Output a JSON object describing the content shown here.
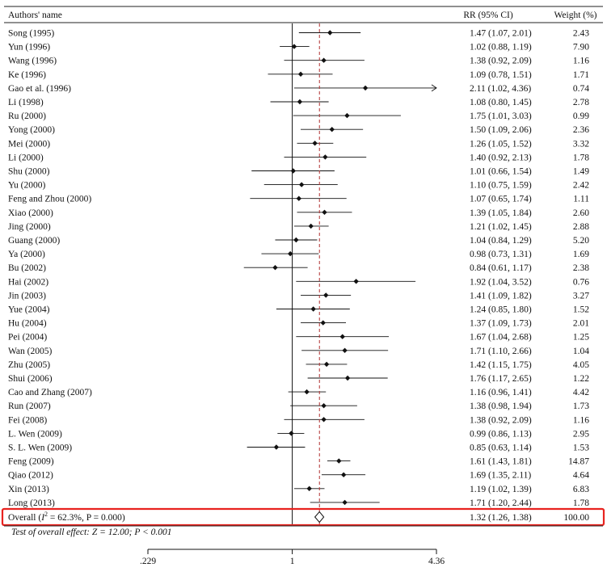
{
  "chart_data": {
    "type": "forest",
    "headers": {
      "name": "Authors' name",
      "rr": "RR (95% CI)",
      "weight": "Weight (%)"
    },
    "studies": [
      {
        "name": "Song (1995)",
        "rr": 1.47,
        "lo": 1.07,
        "hi": 2.01,
        "ci_text": "1.47 (1.07, 2.01)",
        "weight": "2.43"
      },
      {
        "name": "Yun (1996)",
        "rr": 1.02,
        "lo": 0.88,
        "hi": 1.19,
        "ci_text": "1.02 (0.88, 1.19)",
        "weight": "7.90"
      },
      {
        "name": "Wang (1996)",
        "rr": 1.38,
        "lo": 0.92,
        "hi": 2.09,
        "ci_text": "1.38 (0.92, 2.09)",
        "weight": "1.16"
      },
      {
        "name": "Ke (1996)",
        "rr": 1.09,
        "lo": 0.78,
        "hi": 1.51,
        "ci_text": "1.09 (0.78, 1.51)",
        "weight": "1.71"
      },
      {
        "name": "Gao et al. (1996)",
        "rr": 2.11,
        "lo": 1.02,
        "hi": 4.36,
        "ci_text": "2.11 (1.02, 4.36)",
        "weight": "0.74",
        "arrow": true
      },
      {
        "name": "Li (1998)",
        "rr": 1.08,
        "lo": 0.8,
        "hi": 1.45,
        "ci_text": "1.08 (0.80, 1.45)",
        "weight": "2.78"
      },
      {
        "name": "Ru (2000)",
        "rr": 1.75,
        "lo": 1.01,
        "hi": 3.03,
        "ci_text": "1.75 (1.01, 3.03)",
        "weight": "0.99"
      },
      {
        "name": "Yong (2000)",
        "rr": 1.5,
        "lo": 1.09,
        "hi": 2.06,
        "ci_text": "1.50 (1.09, 2.06)",
        "weight": "2.36"
      },
      {
        "name": "Mei (2000)",
        "rr": 1.26,
        "lo": 1.05,
        "hi": 1.52,
        "ci_text": "1.26 (1.05, 1.52)",
        "weight": "3.32"
      },
      {
        "name": "Li (2000)",
        "rr": 1.4,
        "lo": 0.92,
        "hi": 2.13,
        "ci_text": "1.40 (0.92, 2.13)",
        "weight": "1.78"
      },
      {
        "name": "Shu (2000)",
        "rr": 1.01,
        "lo": 0.66,
        "hi": 1.54,
        "ci_text": "1.01 (0.66, 1.54)",
        "weight": "1.49"
      },
      {
        "name": "Yu (2000)",
        "rr": 1.1,
        "lo": 0.75,
        "hi": 1.59,
        "ci_text": "1.10 (0.75, 1.59)",
        "weight": "2.42"
      },
      {
        "name": "Feng and Zhou (2000)",
        "rr": 1.07,
        "lo": 0.65,
        "hi": 1.74,
        "ci_text": "1.07 (0.65, 1.74)",
        "weight": "1.11"
      },
      {
        "name": "Xiao (2000)",
        "rr": 1.39,
        "lo": 1.05,
        "hi": 1.84,
        "ci_text": "1.39 (1.05, 1.84)",
        "weight": "2.60"
      },
      {
        "name": "Jing (2000)",
        "rr": 1.21,
        "lo": 1.02,
        "hi": 1.45,
        "ci_text": "1.21 (1.02, 1.45)",
        "weight": "2.88"
      },
      {
        "name": "Guang (2000)",
        "rr": 1.04,
        "lo": 0.84,
        "hi": 1.29,
        "ci_text": "1.04 (0.84, 1.29)",
        "weight": "5.20"
      },
      {
        "name": "Ya (2000)",
        "rr": 0.98,
        "lo": 0.73,
        "hi": 1.31,
        "ci_text": "0.98 (0.73, 1.31)",
        "weight": "1.69"
      },
      {
        "name": "Bu (2002)",
        "rr": 0.84,
        "lo": 0.61,
        "hi": 1.17,
        "ci_text": "0.84 (0.61, 1.17)",
        "weight": "2.38"
      },
      {
        "name": "Hai (2002)",
        "rr": 1.92,
        "lo": 1.04,
        "hi": 3.52,
        "ci_text": "1.92 (1.04, 3.52)",
        "weight": "0.76"
      },
      {
        "name": "Jin (2003)",
        "rr": 1.41,
        "lo": 1.09,
        "hi": 1.82,
        "ci_text": "1.41 (1.09, 1.82)",
        "weight": "3.27"
      },
      {
        "name": "Yue (2004)",
        "rr": 1.24,
        "lo": 0.85,
        "hi": 1.8,
        "ci_text": "1.24 (0.85, 1.80)",
        "weight": "1.52"
      },
      {
        "name": "Hu (2004)",
        "rr": 1.37,
        "lo": 1.09,
        "hi": 1.73,
        "ci_text": "1.37 (1.09, 1.73)",
        "weight": "2.01"
      },
      {
        "name": "Pei (2004)",
        "rr": 1.67,
        "lo": 1.04,
        "hi": 2.68,
        "ci_text": "1.67 (1.04, 2.68)",
        "weight": "1.25"
      },
      {
        "name": "Wan (2005)",
        "rr": 1.71,
        "lo": 1.1,
        "hi": 2.66,
        "ci_text": "1.71 (1.10, 2.66)",
        "weight": "1.04"
      },
      {
        "name": "Zhu (2005)",
        "rr": 1.42,
        "lo": 1.15,
        "hi": 1.75,
        "ci_text": "1.42 (1.15, 1.75)",
        "weight": "4.05"
      },
      {
        "name": "Shui (2006)",
        "rr": 1.76,
        "lo": 1.17,
        "hi": 2.65,
        "ci_text": "1.76 (1.17, 2.65)",
        "weight": "1.22"
      },
      {
        "name": "Cao and Zhang (2007)",
        "rr": 1.16,
        "lo": 0.96,
        "hi": 1.41,
        "ci_text": "1.16 (0.96, 1.41)",
        "weight": "4.42"
      },
      {
        "name": "Run (2007)",
        "rr": 1.38,
        "lo": 0.98,
        "hi": 1.94,
        "ci_text": "1.38 (0.98, 1.94)",
        "weight": "1.73"
      },
      {
        "name": "Fei (2008)",
        "rr": 1.38,
        "lo": 0.92,
        "hi": 2.09,
        "ci_text": "1.38 (0.92, 2.09)",
        "weight": "1.16"
      },
      {
        "name": "L. Wen (2009)",
        "rr": 0.99,
        "lo": 0.86,
        "hi": 1.13,
        "ci_text": "0.99 (0.86, 1.13)",
        "weight": "2.95"
      },
      {
        "name": "S. L. Wen (2009)",
        "rr": 0.85,
        "lo": 0.63,
        "hi": 1.14,
        "ci_text": "0.85 (0.63, 1.14)",
        "weight": "1.53"
      },
      {
        "name": "Feng (2009)",
        "rr": 1.61,
        "lo": 1.43,
        "hi": 1.81,
        "ci_text": "1.61 (1.43, 1.81)",
        "weight": "14.87"
      },
      {
        "name": "Qiao (2012)",
        "rr": 1.69,
        "lo": 1.35,
        "hi": 2.11,
        "ci_text": "1.69 (1.35, 2.11)",
        "weight": "4.64"
      },
      {
        "name": "Xin (2013)",
        "rr": 1.19,
        "lo": 1.02,
        "hi": 1.39,
        "ci_text": "1.19 (1.02, 1.39)",
        "weight": "6.83"
      },
      {
        "name": "Long (2013)",
        "rr": 1.71,
        "lo": 1.2,
        "hi": 2.44,
        "ci_text": "1.71 (1.20, 2.44)",
        "weight": "1.78"
      }
    ],
    "overall": {
      "label_prefix": "Overall (",
      "i2_symbol": "I",
      "i2_sup": "2",
      "label_suffix": " = 62.3%, P = 0.000)",
      "rr": 1.32,
      "lo": 1.26,
      "hi": 1.38,
      "ci_text": "1.32 (1.26, 1.38)",
      "weight": "100.00"
    },
    "test_text": "Test of overall effect: Z = 12.00; P < 0.001",
    "x_axis": {
      "scale": "log",
      "range": [
        0.229,
        4.36
      ],
      "ticks": [
        {
          "value": 0.229,
          "label": ".229"
        },
        {
          "value": 1,
          "label": "1"
        },
        {
          "value": 4.36,
          "label": "4.36"
        }
      ]
    },
    "null_line": 1,
    "highlight_color": "#e8231f",
    "reference_line_color": "#b03030"
  }
}
